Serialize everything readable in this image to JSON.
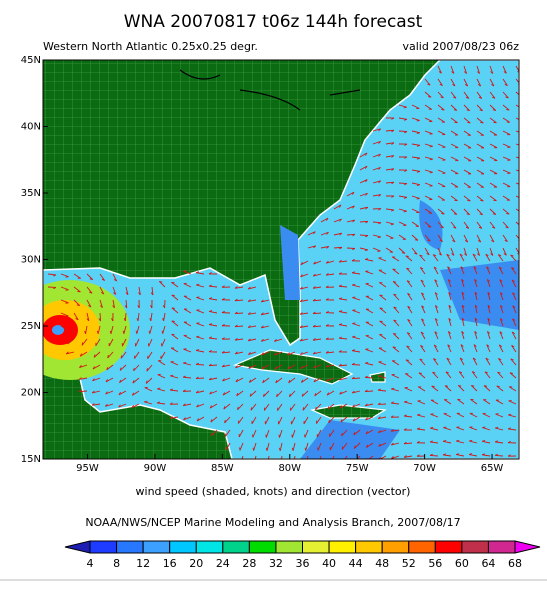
{
  "title": "WNA 20070817 t06z 144h forecast",
  "subtitle_left": "Western North Atlantic 0.25x0.25 degr.",
  "subtitle_right": "valid 2007/08/23 06z",
  "map": {
    "lat_range": [
      15,
      45
    ],
    "lon_range": [
      -98.3,
      -63
    ],
    "lat_ticks": [
      {
        "value": 45,
        "label": "45N"
      },
      {
        "value": 40,
        "label": "40N"
      },
      {
        "value": 35,
        "label": "35N"
      },
      {
        "value": 30,
        "label": "30N"
      },
      {
        "value": 25,
        "label": "25N"
      },
      {
        "value": 20,
        "label": "20N"
      },
      {
        "value": 15,
        "label": "15N"
      }
    ],
    "lon_ticks": [
      {
        "value": -95,
        "label": "95W"
      },
      {
        "value": -90,
        "label": "90W"
      },
      {
        "value": -85,
        "label": "85W"
      },
      {
        "value": -80,
        "label": "80W"
      },
      {
        "value": -75,
        "label": "75W"
      },
      {
        "value": -70,
        "label": "70W"
      },
      {
        "value": -65,
        "label": "65W"
      }
    ]
  },
  "caption": "wind speed (shaded, knots) and direction (vector)",
  "credit": "NOAA/NWS/NCEP Marine Modeling and Analysis Branch, 2007/08/17",
  "colorbar": {
    "ticks": [
      4,
      8,
      12,
      16,
      20,
      24,
      28,
      32,
      36,
      40,
      44,
      48,
      52,
      56,
      60,
      64,
      68
    ],
    "colors": [
      "#1e1eb4",
      "#1e3cff",
      "#2878ff",
      "#3ca0ff",
      "#00c8ff",
      "#00e6e6",
      "#00d28c",
      "#00dc00",
      "#a0e632",
      "#e6f032",
      "#fff000",
      "#ffc800",
      "#ffa000",
      "#ff6400",
      "#ff0000",
      "#c0304a",
      "#d02890",
      "#f000f0"
    ]
  }
}
